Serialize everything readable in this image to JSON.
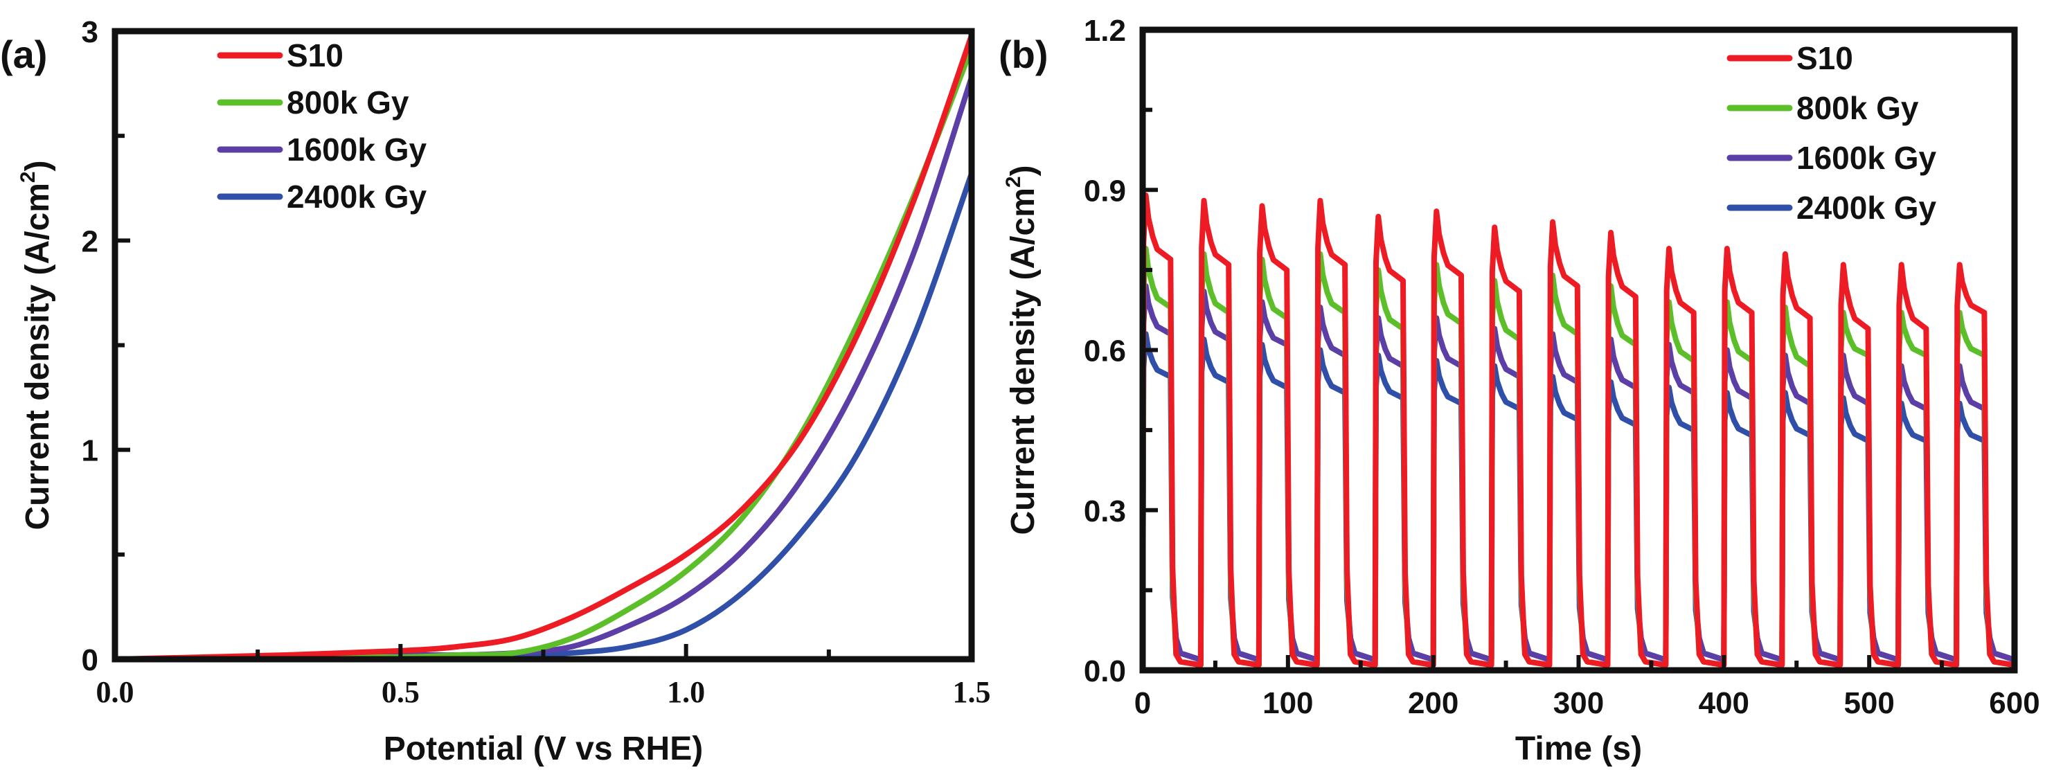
{
  "chart_data": [
    {
      "type": "line",
      "panel_label": "(a)",
      "title": "",
      "xlabel": "Potential (V vs RHE)",
      "ylabel": "Current density (A/cm²)",
      "xlim": [
        0.0,
        1.5
      ],
      "ylim": [
        0,
        3
      ],
      "xticks": [
        "0.0",
        "0.5",
        "1.0",
        "1.5"
      ],
      "xtick_values": [
        0.0,
        0.5,
        1.0,
        1.5
      ],
      "yticks": [
        "0",
        "1",
        "2",
        "3"
      ],
      "ytick_values": [
        0,
        1,
        2,
        3
      ],
      "grid": false,
      "legend_position": "top-left",
      "x": [
        0.0,
        0.3,
        0.5,
        0.6,
        0.7,
        0.8,
        0.9,
        1.0,
        1.1,
        1.2,
        1.3,
        1.4,
        1.5
      ],
      "series": [
        {
          "name": "S10",
          "color": "#ed1c24",
          "values": [
            0,
            0.02,
            0.04,
            0.06,
            0.1,
            0.2,
            0.34,
            0.5,
            0.72,
            1.05,
            1.55,
            2.2,
            2.98
          ]
        },
        {
          "name": "800k Gy",
          "color": "#5cbf2a",
          "values": [
            0,
            0.01,
            0.01,
            0.02,
            0.03,
            0.1,
            0.24,
            0.42,
            0.68,
            1.07,
            1.6,
            2.22,
            2.92
          ]
        },
        {
          "name": "1600k Gy",
          "color": "#5b3fa6",
          "values": [
            0,
            0.01,
            0.02,
            0.02,
            0.03,
            0.06,
            0.16,
            0.3,
            0.52,
            0.85,
            1.32,
            1.95,
            2.78
          ]
        },
        {
          "name": "2400k Gy",
          "color": "#2f4fa8",
          "values": [
            0,
            0.01,
            0.01,
            0.02,
            0.02,
            0.03,
            0.06,
            0.14,
            0.32,
            0.6,
            0.98,
            1.55,
            2.32
          ]
        }
      ]
    },
    {
      "type": "line",
      "panel_label": "(b)",
      "title": "",
      "xlabel": "Time (s)",
      "ylabel": "Current density (A/cm²)",
      "xlim": [
        0,
        600
      ],
      "ylim": [
        0.0,
        1.2
      ],
      "xticks": [
        "0",
        "100",
        "200",
        "300",
        "400",
        "500",
        "600"
      ],
      "xtick_values": [
        0,
        100,
        200,
        300,
        400,
        500,
        600
      ],
      "yticks": [
        "0.0",
        "0.3",
        "0.6",
        "0.9",
        "1.2"
      ],
      "ytick_values": [
        0.0,
        0.3,
        0.6,
        0.9,
        1.2
      ],
      "grid": false,
      "legend_position": "top-right",
      "pulse_period_s": 40,
      "light_on_duration_s": 20,
      "pulse_start_times_s": [
        0,
        40,
        80,
        120,
        160,
        200,
        240,
        280,
        320,
        360,
        400,
        440,
        480,
        520,
        560
      ],
      "series": [
        {
          "name": "S10",
          "color": "#ed1c24",
          "dark_current": 0.01,
          "peak_values": [
            0.89,
            0.88,
            0.87,
            0.88,
            0.85,
            0.86,
            0.83,
            0.84,
            0.82,
            0.79,
            0.79,
            0.78,
            0.76,
            0.76,
            0.76
          ],
          "end_values": [
            0.77,
            0.76,
            0.75,
            0.76,
            0.73,
            0.74,
            0.71,
            0.72,
            0.7,
            0.67,
            0.67,
            0.66,
            0.64,
            0.64,
            0.67
          ]
        },
        {
          "name": "800k Gy",
          "color": "#5cbf2a",
          "dark_current": 0.01,
          "peak_values": [
            0.79,
            0.78,
            0.77,
            0.78,
            0.75,
            0.76,
            0.73,
            0.74,
            0.72,
            0.69,
            0.69,
            0.68,
            0.67,
            0.67,
            0.67
          ],
          "end_values": [
            0.68,
            0.67,
            0.66,
            0.67,
            0.64,
            0.65,
            0.62,
            0.63,
            0.61,
            0.58,
            0.58,
            0.57,
            0.59,
            0.59,
            0.59
          ]
        },
        {
          "name": "1600k Gy",
          "color": "#5b3fa6",
          "dark_current": 0.02,
          "peak_values": [
            0.72,
            0.71,
            0.69,
            0.68,
            0.66,
            0.66,
            0.64,
            0.63,
            0.62,
            0.61,
            0.6,
            0.59,
            0.59,
            0.57,
            0.57
          ],
          "end_values": [
            0.63,
            0.62,
            0.61,
            0.59,
            0.57,
            0.57,
            0.55,
            0.54,
            0.53,
            0.52,
            0.51,
            0.5,
            0.5,
            0.49,
            0.49
          ]
        },
        {
          "name": "2400k Gy",
          "color": "#2f4fa8",
          "dark_current": 0.02,
          "peak_values": [
            0.63,
            0.62,
            0.61,
            0.6,
            0.59,
            0.58,
            0.57,
            0.55,
            0.54,
            0.53,
            0.52,
            0.52,
            0.51,
            0.5,
            0.5
          ],
          "end_values": [
            0.55,
            0.54,
            0.53,
            0.52,
            0.51,
            0.5,
            0.49,
            0.47,
            0.46,
            0.45,
            0.44,
            0.44,
            0.43,
            0.43,
            0.43
          ]
        }
      ]
    }
  ]
}
